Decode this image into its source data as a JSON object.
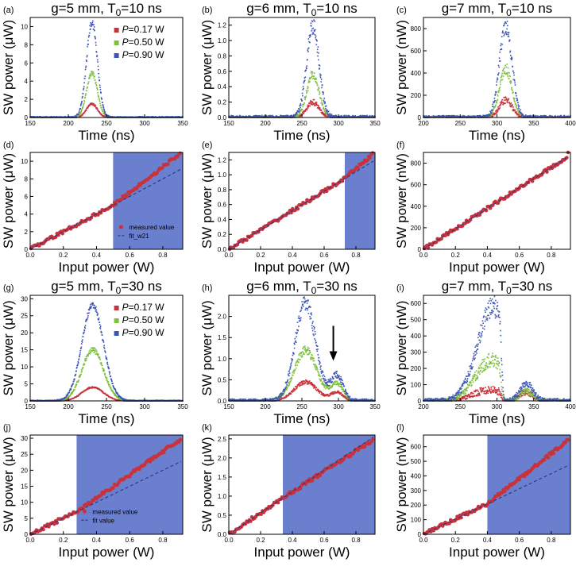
{
  "colors": {
    "red": "#c8323a",
    "green": "#7fbf3f",
    "blue": "#3c55b4",
    "shade": "#6b7fcf",
    "fit": "#2c3b8c"
  },
  "chart_data": [
    {
      "id": "a",
      "type": "line",
      "panel_label": "(a)",
      "title": "g=5 mm, T0=10 ns",
      "title_main": "g=5 mm, T",
      "title_sub": "0",
      "title_tail": "=10 ns",
      "xlabel": "Time (ns)",
      "ylabel": "SW power (μW)",
      "xlim": [
        150,
        350
      ],
      "ylim": [
        0,
        11
      ],
      "xticks": [
        150,
        200,
        250,
        300,
        350
      ],
      "yticks": [
        0,
        2,
        4,
        6,
        8,
        10
      ],
      "legend": {
        "position": "top-right",
        "entries": [
          "P=0.17 W",
          "P=0.50 W",
          "P=0.90 W"
        ],
        "symbol": "P",
        "suffixes": [
          "=0.17 W",
          "=0.50 W",
          "=0.90 W"
        ]
      },
      "series": [
        {
          "name": "P=0.17 W",
          "color": "red",
          "peak": 1.5,
          "center": 231,
          "width": 10,
          "noise": 0.1
        },
        {
          "name": "P=0.50 W",
          "color": "green",
          "peak": 4.9,
          "center": 231,
          "width": 10,
          "noise": 0.2
        },
        {
          "name": "P=0.90 W",
          "color": "blue",
          "peak": 10.5,
          "center": 231,
          "width": 10,
          "noise": 0.35
        }
      ]
    },
    {
      "id": "b",
      "type": "line",
      "panel_label": "(b)",
      "title": "g=6 mm, T0=10 ns",
      "title_main": "g=6 mm, T",
      "title_sub": "0",
      "title_tail": "=10 ns",
      "xlabel": "Time (ns)",
      "ylabel": "SW power (μW)",
      "xlim": [
        150,
        350
      ],
      "ylim": [
        0,
        1.3
      ],
      "xticks": [
        150,
        200,
        250,
        300,
        350
      ],
      "yticks": [
        0,
        0.2,
        0.4,
        0.6,
        0.8,
        1.0,
        1.2
      ],
      "series": [
        {
          "name": "P=0.17 W",
          "color": "red",
          "peak": 0.2,
          "center": 265,
          "width": 12,
          "noise": 0.03
        },
        {
          "name": "P=0.50 W",
          "color": "green",
          "peak": 0.55,
          "center": 265,
          "width": 12,
          "noise": 0.05
        },
        {
          "name": "P=0.90 W",
          "color": "blue",
          "peak": 1.2,
          "center": 265,
          "width": 12,
          "noise": 0.09
        }
      ]
    },
    {
      "id": "c",
      "type": "line",
      "panel_label": "(c)",
      "title": "g=7 mm, T0=10 ns",
      "title_main": "g=7 mm, T",
      "title_sub": "0",
      "title_tail": "=10 ns",
      "xlabel": "Time (ns)",
      "ylabel": "SW power (nW)",
      "xlim": [
        200,
        400
      ],
      "ylim": [
        0,
        900
      ],
      "xticks": [
        200,
        250,
        300,
        350,
        400
      ],
      "yticks": [
        0,
        200,
        400,
        600,
        800
      ],
      "series": [
        {
          "name": "P=0.17 W",
          "color": "red",
          "peak": 160,
          "center": 312,
          "width": 12,
          "noise": 25
        },
        {
          "name": "P=0.50 W",
          "color": "green",
          "peak": 440,
          "center": 312,
          "width": 12,
          "noise": 40
        },
        {
          "name": "P=0.90 W",
          "color": "blue",
          "peak": 830,
          "center": 312,
          "width": 12,
          "noise": 60
        }
      ]
    },
    {
      "id": "d",
      "type": "scatter",
      "panel_label": "(d)",
      "xlabel": "Input power (W)",
      "ylabel": "SW power (μW)",
      "xlim": [
        0,
        0.92
      ],
      "ylim": [
        0,
        11
      ],
      "xticks": [
        0,
        0.2,
        0.4,
        0.6,
        0.8
      ],
      "yticks": [
        0,
        2,
        4,
        6,
        8,
        10
      ],
      "shade_from": 0.5,
      "fit_slope": 10.0,
      "measured_slope": 11.7,
      "knee": 0.5,
      "end_value": 10.8,
      "legend": {
        "position": "center-right",
        "measured": "measured value",
        "fit": "fit_w21"
      }
    },
    {
      "id": "e",
      "type": "scatter",
      "panel_label": "(e)",
      "xlabel": "Input power (W)",
      "ylabel": "SW power (μW)",
      "xlim": [
        0,
        0.92
      ],
      "ylim": [
        0,
        1.3
      ],
      "xticks": [
        0,
        0.2,
        0.4,
        0.6,
        0.8
      ],
      "yticks": [
        0,
        0.2,
        0.4,
        0.6,
        0.8,
        1.0,
        1.2
      ],
      "shade_from": 0.73,
      "fit_slope": 1.3,
      "measured_slope": 1.38,
      "knee": 0.73,
      "end_value": 1.27
    },
    {
      "id": "f",
      "type": "scatter",
      "panel_label": "(f)",
      "xlabel": "Input power (W)",
      "ylabel": "SW power (nW)",
      "xlim": [
        0,
        0.92
      ],
      "ylim": [
        0,
        900
      ],
      "xticks": [
        0,
        0.2,
        0.4,
        0.6,
        0.8
      ],
      "yticks": [
        0,
        200,
        400,
        600,
        800
      ],
      "fit_slope": 950,
      "measured_slope": 950,
      "knee": 0.9,
      "end_value": 860
    },
    {
      "id": "g",
      "type": "line",
      "panel_label": "(g)",
      "title": "g=5 mm, T0=30 ns",
      "title_main": "g=5 mm, T",
      "title_sub": "0",
      "title_tail": "=30 ns",
      "xlabel": "Time (ns)",
      "ylabel": "SW power (μW)",
      "xlim": [
        150,
        350
      ],
      "ylim": [
        0,
        31
      ],
      "xticks": [
        150,
        200,
        250,
        300,
        350
      ],
      "yticks": [
        0,
        5,
        10,
        15,
        20,
        25,
        30
      ],
      "legend": {
        "position": "top-right",
        "entries": [
          "P=0.17 W",
          "P=0.50 W",
          "P=0.90 W"
        ],
        "symbol": "P",
        "suffixes": [
          "=0.17 W",
          "=0.50 W",
          "=0.90 W"
        ]
      },
      "series": [
        {
          "name": "P=0.17 W",
          "color": "red",
          "peak": 4,
          "center": 232,
          "width": 20,
          "noise": 0.2
        },
        {
          "name": "P=0.50 W",
          "color": "green",
          "peak": 15,
          "center": 232,
          "width": 20,
          "noise": 0.6
        },
        {
          "name": "P=0.90 W",
          "color": "blue",
          "peak": 28,
          "center": 232,
          "width": 20,
          "noise": 0.7
        }
      ]
    },
    {
      "id": "h",
      "type": "line",
      "panel_label": "(h)",
      "title": "g=6 mm, T0=30 ns",
      "title_main": "g=6 mm, T",
      "title_sub": "0",
      "title_tail": "=30 ns",
      "xlabel": "Time (ns)",
      "ylabel": "SW power (μW)",
      "xlim": [
        150,
        350
      ],
      "ylim": [
        0,
        2.5
      ],
      "xticks": [
        150,
        200,
        250,
        300,
        350
      ],
      "yticks": [
        0,
        0.5,
        1.0,
        1.5,
        2.0
      ],
      "arrow_at": [
        293,
        0.95
      ],
      "series": [
        {
          "name": "P=0.17 W",
          "color": "red",
          "peak": 0.45,
          "center": 255,
          "width": 22,
          "noise": 0.04,
          "hump": 0.2,
          "hump_center": 298
        },
        {
          "name": "P=0.50 W",
          "color": "green",
          "peak": 1.2,
          "center": 255,
          "width": 22,
          "noise": 0.08,
          "hump": 0.4,
          "hump_center": 298
        },
        {
          "name": "P=0.90 W",
          "color": "blue",
          "peak": 2.3,
          "center": 255,
          "width": 20,
          "noise": 0.15,
          "hump": 0.6,
          "hump_center": 298
        }
      ]
    },
    {
      "id": "i",
      "type": "line",
      "panel_label": "(i)",
      "title": "g=7 mm, T0=30 ns",
      "title_main": "g=7 mm, T",
      "title_sub": "0",
      "title_tail": "=30 ns",
      "xlabel": "Time (ns)",
      "ylabel": "SW power (nW)",
      "xlim": [
        200,
        400
      ],
      "ylim": [
        0,
        650
      ],
      "xticks": [
        200,
        250,
        300,
        350,
        400
      ],
      "yticks": [
        0,
        100,
        200,
        300,
        400,
        500,
        600
      ],
      "series": [
        {
          "name": "P=0.17 W",
          "color": "red",
          "peak": 70,
          "center": 290,
          "width": 30,
          "noise": 20,
          "cut": 303,
          "hump": 55,
          "hump_center": 340
        },
        {
          "name": "P=0.50 W",
          "color": "green",
          "peak": 250,
          "center": 292,
          "width": 30,
          "noise": 35,
          "cut": 303,
          "hump": 60,
          "hump_center": 340
        },
        {
          "name": "P=0.90 W",
          "color": "blue",
          "peak": 580,
          "center": 295,
          "width": 30,
          "noise": 50,
          "cut": 303,
          "hump": 110,
          "hump_center": 340
        }
      ]
    },
    {
      "id": "j",
      "type": "scatter",
      "panel_label": "(j)",
      "xlabel": "Input power (W)",
      "ylabel": "SW power (μW)",
      "xlim": [
        0,
        0.92
      ],
      "ylim": [
        0,
        31
      ],
      "xticks": [
        0,
        0.2,
        0.4,
        0.6,
        0.8
      ],
      "yticks": [
        0,
        5,
        10,
        15,
        20,
        25,
        30
      ],
      "shade_from": 0.28,
      "fit_slope": 25,
      "measured_slope": 36.5,
      "knee": 0.28,
      "end_value": 29.5,
      "legend": {
        "position": "center-right",
        "measured": "measured value",
        "fit": "fit value"
      }
    },
    {
      "id": "k",
      "type": "scatter",
      "panel_label": "(k)",
      "xlabel": "Input power (W)",
      "ylabel": "SW power (μW)",
      "xlim": [
        0,
        0.92
      ],
      "ylim": [
        0,
        2.6
      ],
      "xticks": [
        0,
        0.2,
        0.4,
        0.6,
        0.8
      ],
      "yticks": [
        0,
        0.5,
        1.0,
        1.5,
        2.0,
        2.5
      ],
      "shade_from": 0.34,
      "fit_slope": 2.8,
      "measured_slope": 2.55,
      "knee": 0.34,
      "end_value": 2.45
    },
    {
      "id": "l",
      "type": "scatter",
      "panel_label": "(l)",
      "xlabel": "Input power (W)",
      "ylabel": "SW power (nW)",
      "xlim": [
        0,
        0.92
      ],
      "ylim": [
        0,
        680
      ],
      "xticks": [
        0,
        0.2,
        0.4,
        0.6,
        0.8
      ],
      "yticks": [
        0,
        100,
        200,
        300,
        400,
        500,
        600
      ],
      "shade_from": 0.4,
      "fit_slope": 520,
      "measured_slope": 720,
      "knee": 0.4,
      "end_value": 640
    }
  ]
}
